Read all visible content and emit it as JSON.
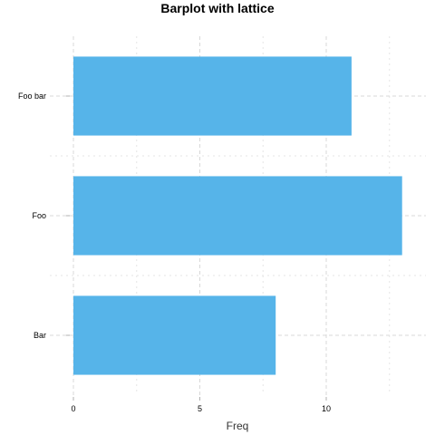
{
  "chart_data": {
    "type": "bar",
    "orientation": "horizontal",
    "title": "Barplot with lattice",
    "xlabel": "Freq",
    "ylabel": "",
    "categories": [
      "Bar",
      "Foo",
      "Foo bar"
    ],
    "values": [
      8,
      13,
      11
    ],
    "xlim": [
      0,
      14
    ],
    "x_ticks": [
      0,
      5,
      10
    ],
    "grid": true,
    "bar_color": "#56B4E9"
  }
}
